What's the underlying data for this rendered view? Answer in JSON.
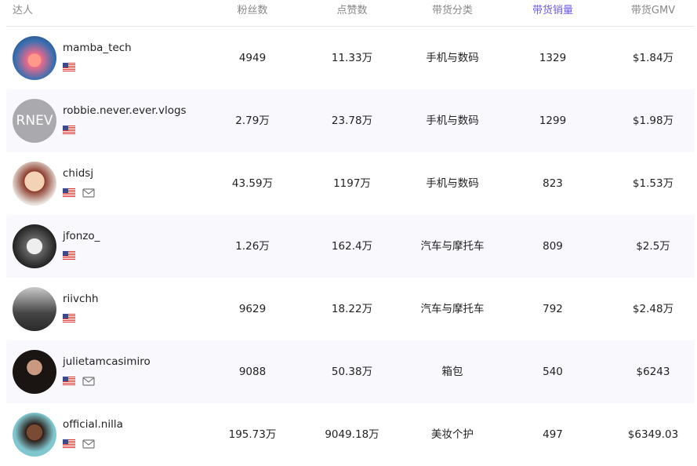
{
  "header": [
    "达人",
    "粉丝数",
    "点赞数",
    "带货分类",
    "带货销量",
    "带货GMV"
  ],
  "rows": [
    {
      "name": "mamba_tech",
      "fans": "4949",
      "likes": "11.33万",
      "category": "手机与数码",
      "sales": "1329",
      "gmv": "$1.84万"
    },
    {
      "name": "robbie.never.ever.vlogs",
      "avatar_text": "RNEV",
      "fans": "2.79万",
      "likes": "23.78万",
      "category": "手机与数码",
      "sales": "1299",
      "gmv": "$1.98万"
    },
    {
      "name": "chidsj",
      "fans": "43.59万",
      "likes": "1197万",
      "category": "手机与数码",
      "sales": "823",
      "gmv": "$1.53万"
    },
    {
      "name": "jfonzo_",
      "fans": "1.26万",
      "likes": "162.4万",
      "category": "汽车与摩托车",
      "sales": "809",
      "gmv": "$2.5万"
    },
    {
      "name": "riivchh",
      "fans": "9629",
      "likes": "18.22万",
      "category": "汽车与摩托车",
      "sales": "792",
      "gmv": "$2.48万"
    },
    {
      "name": "julietamcasimiro",
      "fans": "9088",
      "likes": "50.38万",
      "category": "箱包",
      "sales": "540",
      "gmv": "$6243"
    },
    {
      "name": "official.nilla",
      "fans": "195.73万",
      "likes": "9049.18万",
      "category": "美妆个护",
      "sales": "497",
      "gmv": "$6349.03"
    }
  ]
}
